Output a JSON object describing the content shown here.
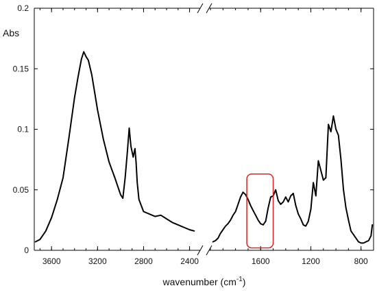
{
  "chart_data": {
    "type": "line",
    "title": "",
    "ylabel": "Abs",
    "xlabel": {
      "main": "wavenumber (cm",
      "sup": "-1",
      "tail": ")"
    },
    "ylim": [
      0,
      0.2
    ],
    "y_ticks": [
      "0",
      "0.05",
      "0.1",
      "0.15",
      "0.2"
    ],
    "x_ticks": [
      "3600",
      "3200",
      "2800",
      "2400",
      "1600",
      "1200",
      "800"
    ],
    "broken_axis": true,
    "segments": [
      {
        "name": "",
        "xlim": [
          3750,
          2320
        ],
        "x": [
          3740,
          3700,
          3650,
          3600,
          3550,
          3500,
          3450,
          3400,
          3370,
          3340,
          3320,
          3300,
          3280,
          3250,
          3200,
          3150,
          3100,
          3050,
          3000,
          2980,
          2960,
          2940,
          2925,
          2910,
          2890,
          2875,
          2865,
          2855,
          2840,
          2800,
          2750,
          2700,
          2650,
          2600,
          2550,
          2500,
          2450,
          2400,
          2360
        ],
        "y": [
          0.007,
          0.009,
          0.016,
          0.027,
          0.042,
          0.06,
          0.092,
          0.126,
          0.143,
          0.158,
          0.164,
          0.16,
          0.157,
          0.145,
          0.116,
          0.092,
          0.073,
          0.06,
          0.046,
          0.043,
          0.06,
          0.082,
          0.101,
          0.086,
          0.077,
          0.084,
          0.073,
          0.056,
          0.042,
          0.032,
          0.03,
          0.028,
          0.029,
          0.026,
          0.023,
          0.021,
          0.019,
          0.017,
          0.016
        ]
      },
      {
        "name": "",
        "xlim": [
          2000,
          700
        ],
        "x": [
          1980,
          1960,
          1940,
          1920,
          1900,
          1880,
          1860,
          1840,
          1820,
          1800,
          1780,
          1760,
          1740,
          1720,
          1700,
          1680,
          1660,
          1640,
          1620,
          1600,
          1580,
          1560,
          1540,
          1520,
          1500,
          1480,
          1460,
          1440,
          1420,
          1400,
          1380,
          1360,
          1340,
          1320,
          1300,
          1280,
          1260,
          1240,
          1220,
          1200,
          1180,
          1160,
          1140,
          1120,
          1100,
          1080,
          1060,
          1040,
          1020,
          1000,
          980,
          960,
          940,
          920,
          900,
          880,
          860,
          840,
          820,
          800,
          780,
          760,
          740,
          720,
          710
        ],
        "y": [
          0.007,
          0.008,
          0.01,
          0.014,
          0.017,
          0.02,
          0.022,
          0.025,
          0.029,
          0.032,
          0.038,
          0.044,
          0.048,
          0.046,
          0.042,
          0.037,
          0.033,
          0.029,
          0.025,
          0.022,
          0.021,
          0.024,
          0.035,
          0.044,
          0.045,
          0.05,
          0.041,
          0.038,
          0.04,
          0.044,
          0.04,
          0.045,
          0.047,
          0.037,
          0.03,
          0.026,
          0.021,
          0.02,
          0.024,
          0.034,
          0.056,
          0.045,
          0.074,
          0.066,
          0.058,
          0.06,
          0.104,
          0.098,
          0.111,
          0.1,
          0.095,
          0.075,
          0.05,
          0.035,
          0.025,
          0.016,
          0.013,
          0.01,
          0.007,
          0.006,
          0.006,
          0.007,
          0.008,
          0.012,
          0.021
        ]
      }
    ],
    "annotations": [
      {
        "type": "box",
        "color": "#e02020",
        "x_range": [
          1710,
          1500
        ],
        "y_range": [
          0.002,
          0.063
        ]
      }
    ],
    "grid": false,
    "line_color": "#000000"
  }
}
